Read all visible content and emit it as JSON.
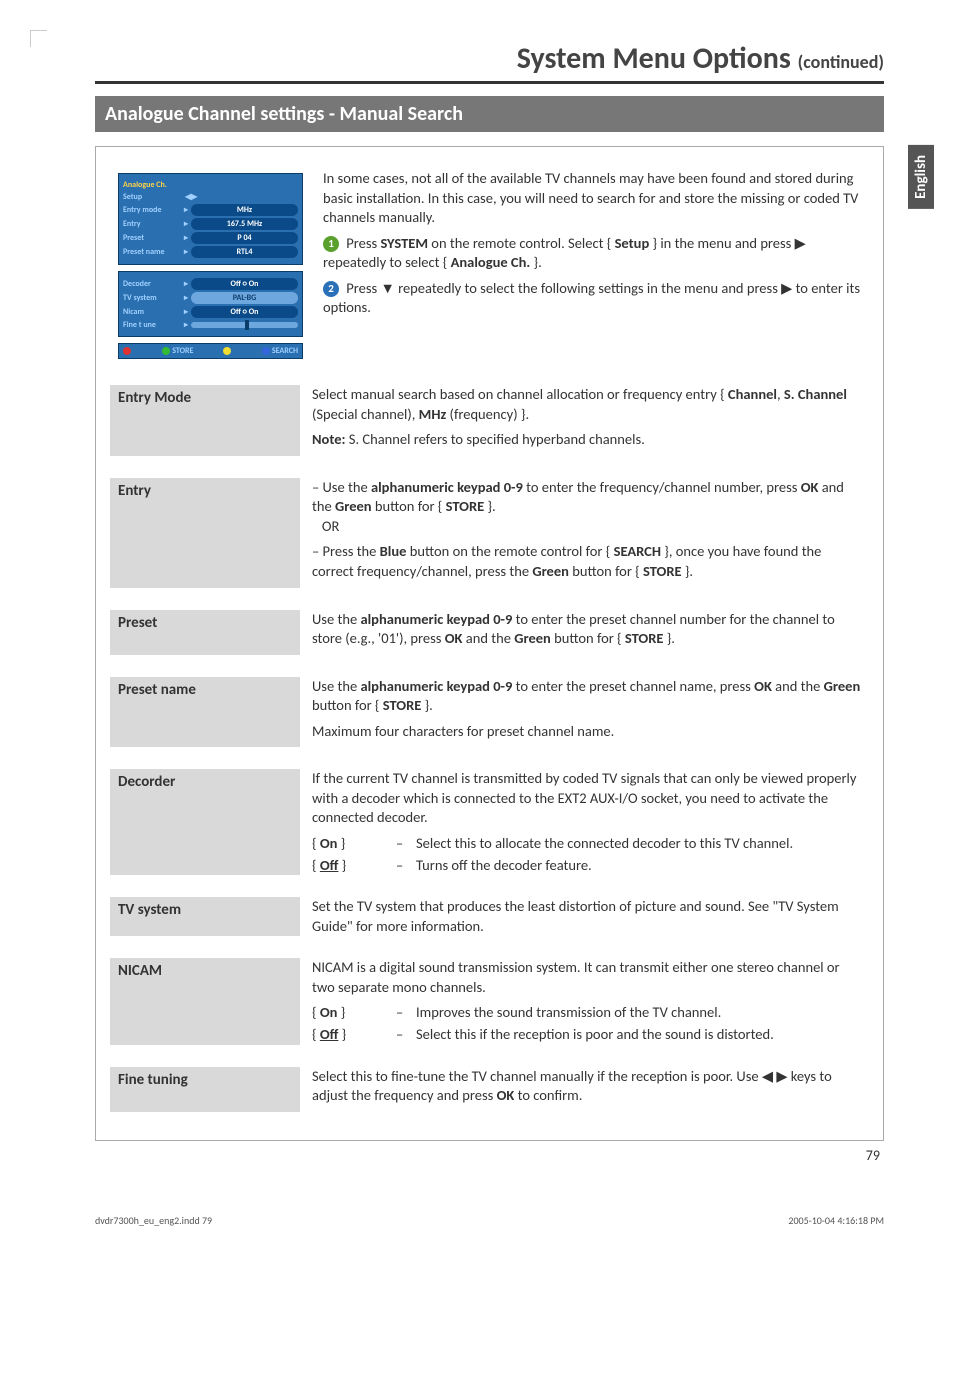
{
  "page": {
    "title_main": "System Menu Options",
    "title_cont": "(continued)",
    "side_tab": "English",
    "section_heading": "Analogue Channel settings - Manual Search",
    "page_number": "79"
  },
  "ui_mock": {
    "title": "Analogue Ch.",
    "setup": "Setup",
    "rows1": [
      {
        "lab": "Entry mode",
        "val": "MHz"
      },
      {
        "lab": "Entry",
        "val": "167.5 MHz"
      },
      {
        "lab": "Preset",
        "val": "P 04"
      },
      {
        "lab": "Preset name",
        "val": "RTL4"
      }
    ],
    "rows2": [
      {
        "lab": "Decoder",
        "val": "Off ○ On"
      },
      {
        "lab": "TV system",
        "val": "PAL-BG"
      },
      {
        "lab": "Nicam",
        "val": "Off ○ On"
      },
      {
        "lab": "Fine t une"
      }
    ],
    "store": "STORE",
    "search": "SEARCH"
  },
  "intro": {
    "p1": "In some cases, not all of the available TV channels may have been found and stored during basic installation. In this case, you will need to search for and store the missing or coded TV channels manually.",
    "step1_a": "Press ",
    "step1_b": "SYSTEM",
    "step1_c": " on the remote control. Select { ",
    "step1_d": "Setup",
    "step1_e": " } in the menu and press ▶ repeatedly to select { ",
    "step1_f": "Analogue Ch.",
    "step1_g": " }.",
    "step2_a": "Press ▼ repeatedly to select the following settings in the menu and press ▶ to enter its options."
  },
  "rows": {
    "entry_mode": {
      "label": "Entry Mode",
      "body_a": "Select manual search based on channel allocation or frequency entry { ",
      "body_b": "Channel",
      "body_c": ", ",
      "body_d": "S. Channel",
      "body_e": " (Special channel), ",
      "body_f": "MHz",
      "body_g": " (frequency) }.",
      "note_a": "Note:",
      "note_b": " S. Channel refers to specified hyperband channels."
    },
    "entry": {
      "label": "Entry",
      "l1_a": "Use the ",
      "l1_b": "alphanumeric keypad 0-9",
      "l1_c": " to enter the frequency/channel number, press ",
      "l1_d": "OK",
      "l1_e": " and the ",
      "l1_f": "Green",
      "l1_g": " button for { ",
      "l1_h": "STORE",
      "l1_i": " }.",
      "or": "OR",
      "l2_a": "Press the ",
      "l2_b": "Blue",
      "l2_c": " button on the remote control for { ",
      "l2_d": "SEARCH",
      "l2_e": " }, once you have found the correct frequency/channel, press the ",
      "l2_f": "Green",
      "l2_g": " button for { ",
      "l2_h": "STORE",
      "l2_i": " }."
    },
    "preset": {
      "label": "Preset",
      "a": "Use the ",
      "b": "alphanumeric keypad 0-9",
      "c": " to enter the preset channel number for the channel to store (e.g., '01'), press ",
      "d": "OK",
      "e": " and the ",
      "f": "Green",
      "g": " button for { ",
      "h": "STORE",
      "i": " }."
    },
    "preset_name": {
      "label": "Preset name",
      "a": "Use the ",
      "b": "alphanumeric keypad 0-9",
      "c": " to enter the preset channel name, press ",
      "d": "OK",
      "e": " and the ",
      "f": "Green",
      "g": " button for { ",
      "h": "STORE",
      "i": " }.",
      "j": "Maximum four characters for preset channel name."
    },
    "decorder": {
      "label": "Decorder",
      "intro": "If the current TV channel is transmitted by coded TV signals that can only be viewed properly with a decoder which is connected to the EXT2 AUX-I/O socket, you need to activate the connected decoder.",
      "on_key": "{ On }",
      "on_val": "Select this to allocate the connected decoder to this TV channel.",
      "off_key": "{ Off }",
      "off_val": "Turns off the decoder feature."
    },
    "tv_system": {
      "label": "TV system",
      "body": "Set the TV system that produces the least distortion of picture and sound. See \"TV System Guide\" for more information."
    },
    "nicam": {
      "label": "NICAM",
      "intro": "NICAM is a digital sound transmission system. It can transmit either one stereo channel or two separate mono channels.",
      "on_key": "{ On }",
      "on_val": "Improves the sound transmission of the TV channel.",
      "off_key": "{ Off }",
      "off_val": "Select this if the reception is poor and the sound is distorted."
    },
    "fine_tuning": {
      "label": "Fine tuning",
      "a": "Select this to fine-tune the TV channel manually if the reception is poor. Use ◀ ▶ keys to adjust the frequency and press ",
      "b": "OK",
      "c": " to confirm."
    }
  },
  "footer": {
    "left": "dvdr7300h_eu_eng2.indd   79",
    "right": "2005-10-04   4:16:18 PM"
  }
}
